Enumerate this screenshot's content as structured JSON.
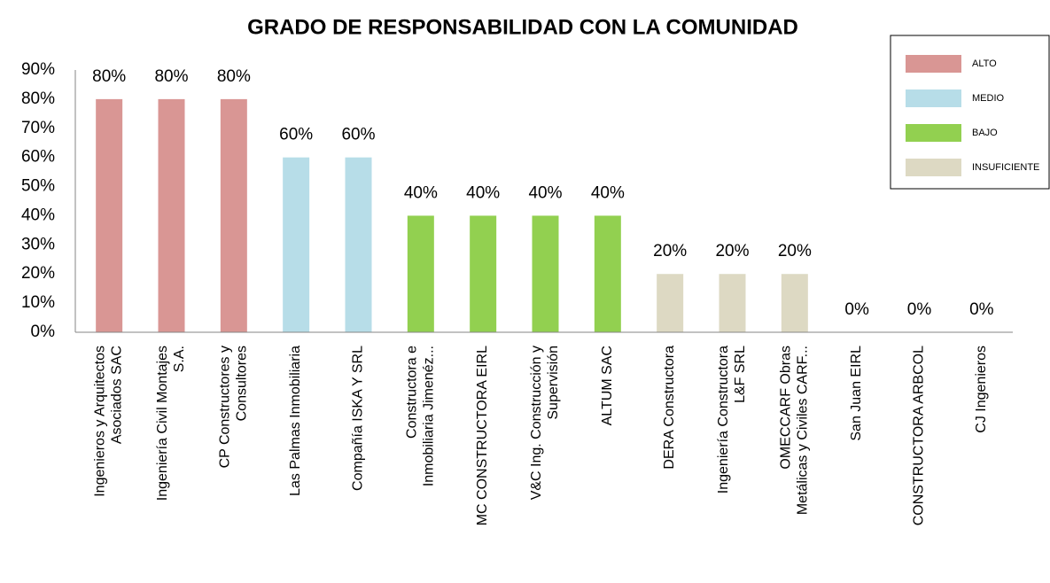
{
  "chart_data": {
    "type": "bar",
    "title": "GRADO DE RESPONSABILIDAD CON LA COMUNIDAD",
    "categories": [
      "Ingenieros y Arquitectos\nAsociados SAC",
      "Ingeniería Civil Montajes\nS.A.",
      "CP Constructores y\nConsultores",
      "Las Palmas Inmobiliaria",
      "Compañía ISKA Y SRL",
      "Constructora e\nInmobiliaria Jimenéz...",
      "MC CONSTRUCTORA EIRL",
      "V&C Ing. Construcción y\nSupervisión",
      "ALTUM SAC",
      "DERA Constructora",
      "Ingeniería Constructora\nL&F SRL",
      "OMECCARF Obras\nMetálicas y Civiles CARF...",
      "San Juan EIRL",
      "CONSTRUCTORA ARBCOL",
      "CJ Ingenieros"
    ],
    "series": [
      {
        "name": "ALTO",
        "color": "#d99694",
        "values": [
          80,
          80,
          80,
          null,
          null,
          null,
          null,
          null,
          null,
          null,
          null,
          null,
          null,
          null,
          null
        ],
        "value_labels": [
          "80%",
          "80%",
          "80%",
          null,
          null,
          null,
          null,
          null,
          null,
          null,
          null,
          null,
          null,
          null,
          null
        ]
      },
      {
        "name": "MEDIO",
        "color": "#b7dde8",
        "values": [
          null,
          null,
          null,
          60,
          60,
          null,
          null,
          null,
          null,
          null,
          null,
          null,
          null,
          null,
          null
        ],
        "value_labels": [
          null,
          null,
          null,
          "60%",
          "60%",
          null,
          null,
          null,
          null,
          null,
          null,
          null,
          null,
          null,
          null
        ]
      },
      {
        "name": "BAJO",
        "color": "#92d050",
        "values": [
          null,
          null,
          null,
          null,
          null,
          40,
          40,
          40,
          40,
          null,
          null,
          null,
          null,
          null,
          null
        ],
        "value_labels": [
          null,
          null,
          null,
          null,
          null,
          "40%",
          "40%",
          "40%",
          "40%",
          null,
          null,
          null,
          null,
          null,
          null
        ]
      },
      {
        "name": "INSUFICIENTE",
        "color": "#ddd9c3",
        "values": [
          null,
          null,
          null,
          null,
          null,
          null,
          null,
          null,
          null,
          20,
          20,
          20,
          0,
          0,
          0
        ],
        "value_labels": [
          null,
          null,
          null,
          null,
          null,
          null,
          null,
          null,
          null,
          "20%",
          "20%",
          "20%",
          "0%",
          "0%",
          "0%"
        ]
      }
    ],
    "ylim": [
      0,
      90
    ],
    "yticks": [
      {
        "value": 0,
        "label": "0%"
      },
      {
        "value": 10,
        "label": "10%"
      },
      {
        "value": 20,
        "label": "20%"
      },
      {
        "value": 30,
        "label": "30%"
      },
      {
        "value": 40,
        "label": "40%"
      },
      {
        "value": 50,
        "label": "50%"
      },
      {
        "value": 60,
        "label": "60%"
      },
      {
        "value": 70,
        "label": "70%"
      },
      {
        "value": 80,
        "label": "80%"
      },
      {
        "value": 90,
        "label": "90%"
      }
    ],
    "grid": false,
    "legend": "top-right"
  }
}
